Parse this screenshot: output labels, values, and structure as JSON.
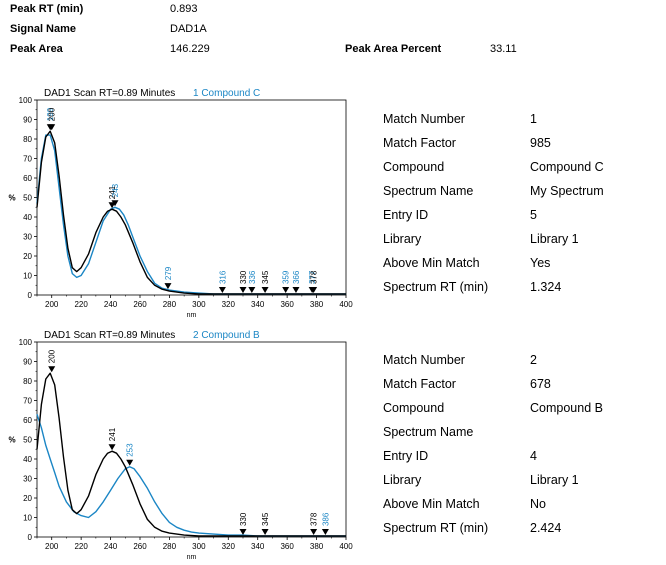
{
  "header": {
    "peak_rt_label": "Peak RT (min)",
    "peak_rt_value": "0.893",
    "signal_name_label": "Signal Name",
    "signal_name_value": "DAD1A",
    "peak_area_label": "Peak Area",
    "peak_area_value": "146.229",
    "peak_area_percent_label": "Peak Area Percent",
    "peak_area_percent_value": "33.11"
  },
  "colors": {
    "sample": "#000000",
    "library": "#1b86c5"
  },
  "matches": [
    {
      "title_prefix": "DAD1 Scan RT=0.89 Minutes",
      "title_suffix": "1 Compound C",
      "details": {
        "match_number_label": "Match Number",
        "match_number": "1",
        "match_factor_label": "Match Factor",
        "match_factor": "985",
        "compound_label": "Compound",
        "compound": "Compound C",
        "spectrum_name_label": "Spectrum Name",
        "spectrum_name": "My Spectrum",
        "entry_id_label": "Entry ID",
        "entry_id": "5",
        "library_label": "Library",
        "library": "Library 1",
        "above_min_match_label": "Above Min Match",
        "above_min_match": "Yes",
        "spectrum_rt_label": "Spectrum RT (min)",
        "spectrum_rt": "1.324"
      }
    },
    {
      "title_prefix": "DAD1 Scan RT=0.89 Minutes",
      "title_suffix": "2 Compound B",
      "details": {
        "match_number_label": "Match Number",
        "match_number": "2",
        "match_factor_label": "Match Factor",
        "match_factor": "678",
        "compound_label": "Compound",
        "compound": "Compound B",
        "spectrum_name_label": "Spectrum Name",
        "spectrum_name": "",
        "entry_id_label": "Entry ID",
        "entry_id": "4",
        "library_label": "Library",
        "library": "Library 1",
        "above_min_match_label": "Above Min Match",
        "above_min_match": "No",
        "spectrum_rt_label": "Spectrum RT (min)",
        "spectrum_rt": "2.424"
      }
    }
  ],
  "chart_data": [
    {
      "type": "line",
      "title": "DAD1 Scan RT=0.89 Minutes 1 Compound C",
      "xlabel": "nm",
      "ylabel": "%",
      "xlim": [
        190,
        400
      ],
      "ylim": [
        0,
        100
      ],
      "xticks": [
        200,
        220,
        240,
        260,
        280,
        300,
        320,
        340,
        360,
        380,
        400
      ],
      "yticks": [
        0,
        10,
        20,
        30,
        40,
        50,
        60,
        70,
        80,
        90,
        100
      ],
      "series": [
        {
          "role": "sample",
          "x": [
            190,
            193,
            196,
            199,
            202,
            205,
            208,
            211,
            214,
            217,
            220,
            225,
            230,
            235,
            238,
            241,
            244,
            247,
            250,
            255,
            260,
            265,
            270,
            275,
            280,
            285,
            290,
            300,
            310,
            320,
            330,
            340,
            350,
            360,
            370,
            380,
            390,
            400
          ],
          "y": [
            45,
            68,
            81,
            84,
            78,
            61,
            41,
            24,
            14,
            12,
            14,
            21,
            32,
            40,
            43,
            44,
            43,
            40,
            36,
            27,
            17,
            9,
            5,
            3,
            2,
            1.5,
            1,
            0.5,
            0.5,
            0.5,
            0.5,
            0.5,
            0.5,
            0.5,
            0.5,
            0.5,
            0.5,
            0.5
          ]
        },
        {
          "role": "library",
          "x": [
            190,
            193,
            196,
            199,
            202,
            205,
            208,
            211,
            214,
            217,
            220,
            225,
            230,
            235,
            240,
            243,
            246,
            249,
            252,
            255,
            260,
            265,
            270,
            275,
            280,
            285,
            290,
            300,
            310,
            320,
            330,
            340,
            350,
            360,
            370,
            380,
            390,
            400
          ],
          "y": [
            47,
            70,
            82,
            82,
            74,
            55,
            36,
            20,
            11,
            9,
            10,
            16,
            27,
            38,
            44,
            45,
            44,
            41,
            36,
            30,
            20,
            12,
            6,
            3.5,
            2.5,
            2,
            1.5,
            1,
            0.5,
            0.5,
            0.5,
            0.5,
            0.5,
            0.5,
            0.5,
            0.5,
            0.5,
            0.5
          ]
        }
      ],
      "peak_labels": [
        {
          "x": 199,
          "y": 84,
          "text": "199",
          "role": "library"
        },
        {
          "x": 200,
          "y": 84,
          "text": "200",
          "role": "sample"
        },
        {
          "x": 241,
          "y": 44,
          "text": "241",
          "role": "sample"
        },
        {
          "x": 243,
          "y": 45,
          "text": "243",
          "role": "library"
        },
        {
          "x": 279,
          "y": 2.5,
          "text": "279",
          "role": "library"
        },
        {
          "x": 316,
          "y": 0.5,
          "text": "316",
          "role": "library"
        },
        {
          "x": 330,
          "y": 0.5,
          "text": "330",
          "role": "sample"
        },
        {
          "x": 336,
          "y": 0.5,
          "text": "336",
          "role": "library"
        },
        {
          "x": 345,
          "y": 0.5,
          "text": "345",
          "role": "sample"
        },
        {
          "x": 359,
          "y": 0.5,
          "text": "359",
          "role": "library"
        },
        {
          "x": 366,
          "y": 0.5,
          "text": "366",
          "role": "library"
        },
        {
          "x": 377,
          "y": 0.5,
          "text": "377",
          "role": "library"
        },
        {
          "x": 378,
          "y": 0.5,
          "text": "378",
          "role": "sample"
        }
      ]
    },
    {
      "type": "line",
      "title": "DAD1 Scan RT=0.89 Minutes 2 Compound B",
      "xlabel": "nm",
      "ylabel": "%",
      "xlim": [
        190,
        400
      ],
      "ylim": [
        0,
        100
      ],
      "xticks": [
        200,
        220,
        240,
        260,
        280,
        300,
        320,
        340,
        360,
        380,
        400
      ],
      "yticks": [
        0,
        10,
        20,
        30,
        40,
        50,
        60,
        70,
        80,
        90,
        100
      ],
      "series": [
        {
          "role": "sample",
          "x": [
            190,
            193,
            196,
            199,
            202,
            205,
            208,
            211,
            214,
            217,
            220,
            225,
            230,
            235,
            238,
            241,
            244,
            247,
            250,
            255,
            260,
            265,
            270,
            275,
            280,
            285,
            290,
            300,
            310,
            320,
            330,
            340,
            350,
            360,
            370,
            380,
            390,
            400
          ],
          "y": [
            45,
            68,
            81,
            84,
            78,
            61,
            41,
            24,
            14,
            12,
            14,
            21,
            32,
            40,
            43,
            44,
            43,
            40,
            36,
            27,
            17,
            9,
            5,
            3,
            2,
            1.5,
            1,
            0.5,
            0.5,
            0.5,
            0.5,
            0.5,
            0.5,
            0.5,
            0.5,
            0.5,
            0.5,
            0.5
          ]
        },
        {
          "role": "library",
          "x": [
            190,
            193,
            196,
            199,
            202,
            205,
            210,
            215,
            220,
            225,
            230,
            235,
            240,
            245,
            250,
            253,
            256,
            260,
            265,
            270,
            275,
            280,
            285,
            290,
            295,
            300,
            310,
            320,
            330,
            340,
            350,
            360,
            370,
            380,
            390,
            400
          ],
          "y": [
            63,
            56,
            47,
            40,
            33,
            26,
            18,
            13,
            11,
            10,
            13,
            18,
            24,
            30,
            35,
            36,
            35,
            31,
            25,
            18,
            12,
            7.5,
            5,
            3.5,
            2.5,
            2,
            1.5,
            1,
            1,
            0.5,
            0.5,
            0.5,
            0.5,
            0.5,
            0.5,
            0.5
          ]
        }
      ],
      "peak_labels": [
        {
          "x": 200,
          "y": 84,
          "text": "200",
          "role": "sample"
        },
        {
          "x": 241,
          "y": 44,
          "text": "241",
          "role": "sample"
        },
        {
          "x": 253,
          "y": 36,
          "text": "253",
          "role": "library"
        },
        {
          "x": 330,
          "y": 0.5,
          "text": "330",
          "role": "sample"
        },
        {
          "x": 345,
          "y": 0.5,
          "text": "345",
          "role": "sample"
        },
        {
          "x": 378,
          "y": 0.5,
          "text": "378",
          "role": "sample"
        },
        {
          "x": 386,
          "y": 0.5,
          "text": "386",
          "role": "library"
        }
      ]
    }
  ]
}
